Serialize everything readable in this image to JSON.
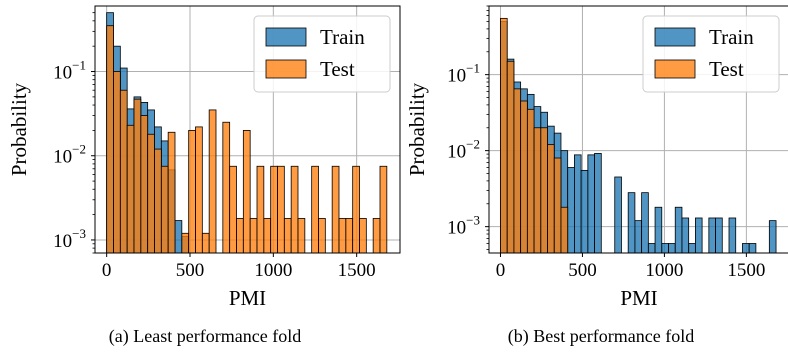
{
  "figure": {
    "colors": {
      "train": "#1f77b4",
      "test": "#ff7f0e",
      "grid": "#b0b0b0"
    }
  },
  "chart_data": [
    {
      "type": "bar",
      "caption": "(a) Least performance fold",
      "xlabel": "PMI",
      "ylabel": "Probability",
      "yscale": "log",
      "xlim": [
        -70,
        1760
      ],
      "ylim": [
        0.0007,
        0.6
      ],
      "xticks": [
        0,
        500,
        1000,
        1500
      ],
      "xtick_labels": [
        "0",
        "500",
        "1000",
        "1500"
      ],
      "yticks": [
        0.001,
        0.01,
        0.1
      ],
      "grid": true,
      "legend_position": "top-right",
      "bin_width": 41,
      "series": [
        {
          "name": "Train",
          "bin_starts": [
            0,
            41,
            82,
            123,
            164,
            205,
            246,
            287,
            328,
            369,
            410,
            451
          ],
          "values": [
            0.5,
            0.2,
            0.11,
            0.036,
            0.05,
            0.043,
            0.035,
            0.022,
            0.015,
            0.0068,
            0.0017,
            0.0011
          ]
        },
        {
          "name": "Test",
          "bin_starts": [
            0,
            41,
            82,
            123,
            164,
            205,
            246,
            287,
            328,
            369,
            410,
            451,
            492,
            533,
            574,
            615,
            656,
            697,
            738,
            779,
            820,
            861,
            902,
            943,
            984,
            1025,
            1066,
            1107,
            1148,
            1189,
            1230,
            1271,
            1312,
            1353,
            1394,
            1435,
            1476,
            1517,
            1558,
            1599,
            1640
          ],
          "values": [
            0.35,
            0.1,
            0.06,
            0.023,
            0.047,
            0.03,
            0.018,
            0.012,
            0.0075,
            0.019,
            0,
            0.0012,
            0.02,
            0.022,
            0.0012,
            0.035,
            0,
            0.025,
            0.0075,
            0.0018,
            0.02,
            0.0018,
            0.0075,
            0.0018,
            0.0075,
            0.0075,
            0.0018,
            0.0075,
            0.0018,
            0,
            0.0075,
            0.0018,
            0,
            0.0075,
            0.0018,
            0.0018,
            0.0075,
            0.0018,
            0,
            0.0018,
            0.0075
          ]
        }
      ]
    },
    {
      "type": "bar",
      "caption": "(b) Best performance fold",
      "xlabel": "PMI",
      "ylabel": "Probability",
      "yscale": "log",
      "xlim": [
        -70,
        1760
      ],
      "ylim": [
        0.00045,
        0.8
      ],
      "xticks": [
        0,
        500,
        1000,
        1500
      ],
      "xtick_labels": [
        "0",
        "500",
        "1000",
        "1500"
      ],
      "yticks": [
        0.001,
        0.01,
        0.1
      ],
      "grid": true,
      "legend_position": "top-right",
      "bin_width": 41,
      "series": [
        {
          "name": "Train",
          "bin_starts": [
            0,
            41,
            82,
            123,
            164,
            205,
            246,
            287,
            328,
            369,
            410,
            451,
            492,
            533,
            574,
            615,
            656,
            697,
            738,
            779,
            820,
            861,
            902,
            943,
            984,
            1025,
            1066,
            1107,
            1148,
            1189,
            1230,
            1271,
            1312,
            1353,
            1394,
            1435,
            1476,
            1517,
            1558,
            1599,
            1640
          ],
          "values": [
            0.5,
            0.16,
            0.08,
            0.065,
            0.055,
            0.038,
            0.032,
            0.021,
            0.017,
            0.01,
            0.006,
            0.0088,
            0.0055,
            0.0088,
            0.0092,
            0,
            0,
            0.0045,
            0,
            0.0028,
            0.0012,
            0.0028,
            0.0006,
            0.0018,
            0.0006,
            0.0006,
            0.0018,
            0.0013,
            0.0006,
            0.0013,
            0,
            0.0013,
            0.0013,
            0,
            0.0013,
            0,
            0.0006,
            0.0006,
            0,
            0,
            0.0012
          ]
        },
        {
          "name": "Test",
          "bin_starts": [
            0,
            41,
            82,
            123,
            164,
            205,
            246,
            287,
            328,
            369
          ],
          "values": [
            0.55,
            0.15,
            0.065,
            0.045,
            0.035,
            0.02,
            0.02,
            0.012,
            0.008,
            0.0018
          ]
        }
      ]
    }
  ]
}
